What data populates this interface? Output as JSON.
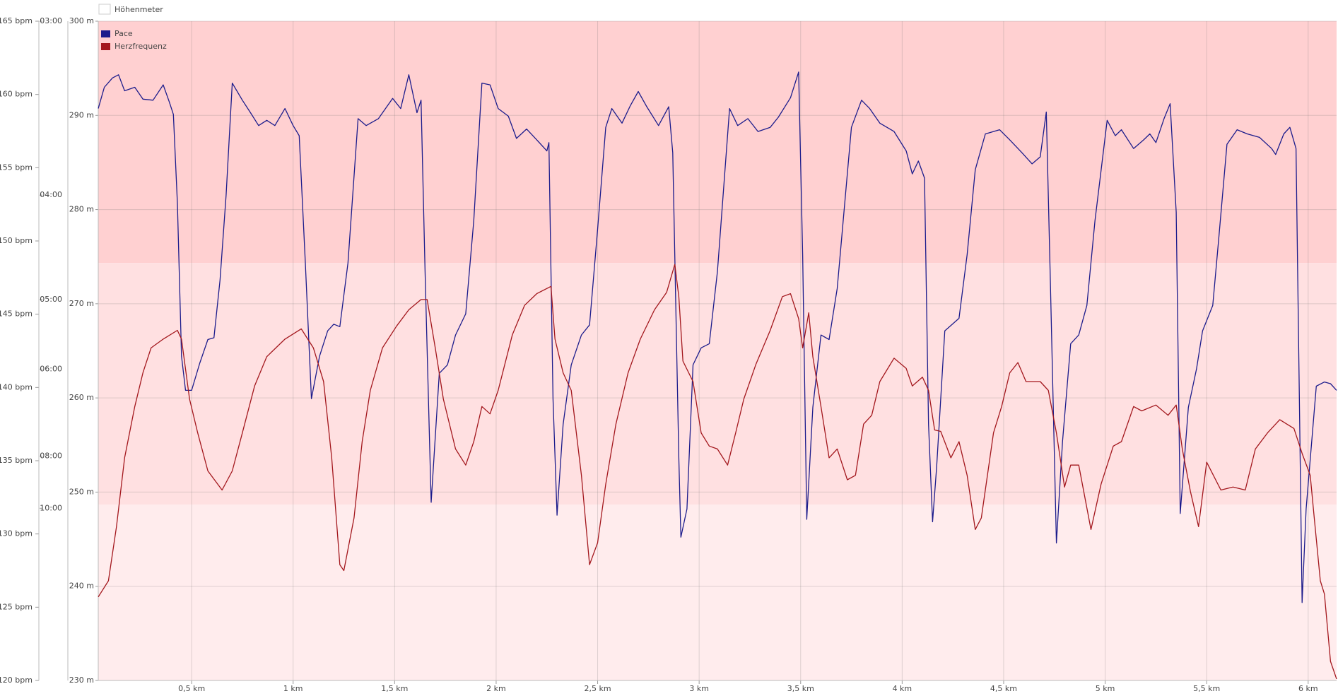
{
  "chart_data": {
    "type": "line",
    "inactive_legend": "Höhenmeter",
    "xlim": [
      0.04,
      6.14
    ],
    "xticks": [
      {
        "value": 0.5,
        "label": "0,5 km"
      },
      {
        "value": 1,
        "label": "1 km"
      },
      {
        "value": 1.5,
        "label": "1,5 km"
      },
      {
        "value": 2,
        "label": "2 km"
      },
      {
        "value": 2.5,
        "label": "2,5 km"
      },
      {
        "value": 3,
        "label": "3 km"
      },
      {
        "value": 3.5,
        "label": "3,5 km"
      },
      {
        "value": 4,
        "label": "4 km"
      },
      {
        "value": 4.5,
        "label": "4,5 km"
      },
      {
        "value": 5,
        "label": "5 km"
      },
      {
        "value": 5.5,
        "label": "5,5 km"
      },
      {
        "value": 6,
        "label": "6 km"
      }
    ],
    "ylim": [
      120,
      165
    ],
    "yticks": [
      {
        "value": 120,
        "label": "120 bpm"
      },
      {
        "value": 125,
        "label": "125 bpm"
      },
      {
        "value": 130,
        "label": "130 bpm"
      },
      {
        "value": 135,
        "label": "135 bpm"
      },
      {
        "value": 140,
        "label": "140 bpm"
      },
      {
        "value": 145,
        "label": "145 bpm"
      },
      {
        "value": 150,
        "label": "150 bpm"
      },
      {
        "value": 155,
        "label": "155 bpm"
      },
      {
        "value": 160,
        "label": "160 bpm"
      },
      {
        "value": 165,
        "label": "165 bpm"
      }
    ],
    "y2lim": [
      1.05,
      20
    ],
    "y2ticks": [
      {
        "value": 20,
        "label": "03:00"
      },
      {
        "value": 15,
        "label": "04:00"
      },
      {
        "value": 12,
        "label": "05:00"
      },
      {
        "value": 10,
        "label": "06:00"
      },
      {
        "value": 7.5,
        "label": "08:00"
      },
      {
        "value": 6,
        "label": "10:00"
      }
    ],
    "y3lim": [
      230,
      300
    ],
    "y3ticks": [
      {
        "value": 230,
        "label": "230 m"
      },
      {
        "value": 240,
        "label": "240 m"
      },
      {
        "value": 250,
        "label": "250 m"
      },
      {
        "value": 260,
        "label": "260 m"
      },
      {
        "value": 270,
        "label": "270 m"
      },
      {
        "value": 280,
        "label": "280 m"
      },
      {
        "value": 290,
        "label": "290 m"
      },
      {
        "value": 300,
        "label": "300 m"
      }
    ],
    "grid": true,
    "zones": [
      {
        "from": 148.5,
        "to": 165,
        "color": "#ffd0d1"
      },
      {
        "from": 132,
        "to": 148.5,
        "color": "#ffe0e1"
      },
      {
        "from": 120,
        "to": 132,
        "color": "#ffeced"
      }
    ],
    "series": [
      {
        "name": "Pace",
        "color": "#1c1c8c",
        "axis": "y2",
        "x": [
          0.04,
          0.07,
          0.11,
          0.14,
          0.17,
          0.22,
          0.26,
          0.31,
          0.36,
          0.39,
          0.41,
          0.43,
          0.45,
          0.47,
          0.5,
          0.54,
          0.58,
          0.61,
          0.64,
          0.67,
          0.7,
          0.75,
          0.79,
          0.83,
          0.87,
          0.91,
          0.96,
          1.0,
          1.03,
          1.06,
          1.09,
          1.13,
          1.17,
          1.2,
          1.23,
          1.27,
          1.32,
          1.36,
          1.42,
          1.49,
          1.53,
          1.57,
          1.61,
          1.63,
          1.65,
          1.68,
          1.72,
          1.76,
          1.8,
          1.85,
          1.89,
          1.93,
          1.97,
          2.01,
          2.06,
          2.1,
          2.15,
          2.2,
          2.25,
          2.26,
          2.28,
          2.3,
          2.33,
          2.37,
          2.42,
          2.46,
          2.5,
          2.54,
          2.57,
          2.62,
          2.66,
          2.7,
          2.74,
          2.8,
          2.85,
          2.87,
          2.9,
          2.91,
          2.94,
          2.97,
          3.01,
          3.05,
          3.09,
          3.15,
          3.19,
          3.24,
          3.29,
          3.35,
          3.39,
          3.45,
          3.49,
          3.51,
          3.53,
          3.56,
          3.6,
          3.64,
          3.68,
          3.75,
          3.8,
          3.84,
          3.89,
          3.96,
          4.02,
          4.05,
          4.08,
          4.11,
          4.13,
          4.15,
          4.17,
          4.21,
          4.28,
          4.32,
          4.36,
          4.41,
          4.48,
          4.53,
          4.59,
          4.64,
          4.68,
          4.71,
          4.73,
          4.76,
          4.79,
          4.83,
          4.87,
          4.91,
          4.95,
          5.01,
          5.05,
          5.08,
          5.14,
          5.19,
          5.22,
          5.25,
          5.29,
          5.32,
          5.35,
          5.37,
          5.41,
          5.45,
          5.48,
          5.53,
          5.56,
          5.6,
          5.65,
          5.7,
          5.76,
          5.82,
          5.84,
          5.88,
          5.91,
          5.94,
          5.97,
          5.99,
          6.04,
          6.08,
          6.11,
          6.14
        ],
        "values": [
          17.49,
          18.1,
          18.37,
          18.46,
          18.0,
          18.1,
          17.76,
          17.73,
          18.17,
          17.68,
          17.32,
          14.76,
          10.37,
          9.39,
          9.39,
          10.17,
          10.85,
          10.9,
          12.56,
          15.0,
          18.22,
          17.73,
          17.37,
          17.0,
          17.15,
          17.0,
          17.49,
          17.0,
          16.71,
          13.05,
          9.15,
          10.37,
          11.1,
          11.29,
          11.22,
          13.05,
          17.2,
          17.0,
          17.2,
          17.78,
          17.49,
          18.46,
          17.37,
          17.73,
          12.8,
          6.17,
          9.88,
          10.12,
          10.98,
          11.59,
          14.27,
          18.22,
          18.17,
          17.49,
          17.27,
          16.63,
          16.9,
          16.59,
          16.27,
          16.51,
          9.15,
          5.8,
          8.41,
          10.12,
          10.98,
          11.27,
          14.02,
          16.95,
          17.49,
          17.07,
          17.56,
          17.98,
          17.56,
          17.0,
          17.54,
          16.22,
          7.44,
          5.17,
          5.98,
          10.12,
          10.61,
          10.73,
          12.8,
          17.49,
          17.0,
          17.2,
          16.83,
          16.95,
          17.24,
          17.8,
          18.54,
          13.29,
          5.68,
          8.9,
          10.98,
          10.85,
          12.32,
          16.95,
          17.73,
          17.49,
          17.07,
          16.83,
          16.27,
          15.61,
          15.98,
          15.49,
          8.41,
          5.61,
          7.2,
          11.1,
          11.46,
          13.29,
          15.73,
          16.76,
          16.88,
          16.59,
          16.22,
          15.9,
          16.1,
          17.39,
          12.56,
          5.0,
          7.93,
          10.73,
          10.98,
          11.83,
          14.27,
          17.15,
          16.71,
          16.88,
          16.34,
          16.59,
          16.76,
          16.51,
          17.2,
          17.63,
          14.51,
          5.85,
          8.9,
          10.0,
          11.1,
          11.83,
          13.78,
          16.46,
          16.88,
          16.76,
          16.66,
          16.34,
          16.17,
          16.76,
          16.95,
          16.34,
          3.29,
          5.98,
          9.51,
          9.63,
          9.58,
          9.39
        ]
      },
      {
        "name": "Herzfrequenz",
        "color": "#a3171d",
        "axis": "y",
        "x": [
          0.04,
          0.09,
          0.13,
          0.17,
          0.22,
          0.26,
          0.3,
          0.36,
          0.43,
          0.45,
          0.49,
          0.53,
          0.58,
          0.65,
          0.7,
          0.75,
          0.81,
          0.87,
          0.96,
          1.04,
          1.1,
          1.15,
          1.19,
          1.23,
          1.25,
          1.3,
          1.34,
          1.38,
          1.44,
          1.51,
          1.57,
          1.63,
          1.66,
          1.7,
          1.74,
          1.8,
          1.85,
          1.89,
          1.93,
          1.97,
          2.01,
          2.08,
          2.14,
          2.2,
          2.27,
          2.29,
          2.33,
          2.37,
          2.42,
          2.46,
          2.5,
          2.54,
          2.59,
          2.65,
          2.71,
          2.78,
          2.84,
          2.88,
          2.9,
          2.92,
          2.97,
          3.01,
          3.05,
          3.09,
          3.14,
          3.18,
          3.22,
          3.28,
          3.35,
          3.41,
          3.45,
          3.49,
          3.51,
          3.54,
          3.56,
          3.6,
          3.64,
          3.68,
          3.73,
          3.77,
          3.81,
          3.85,
          3.89,
          3.96,
          4.02,
          4.05,
          4.1,
          4.13,
          4.16,
          4.19,
          4.24,
          4.28,
          4.32,
          4.36,
          4.39,
          4.45,
          4.49,
          4.53,
          4.57,
          4.61,
          4.68,
          4.72,
          4.76,
          4.8,
          4.83,
          4.87,
          4.93,
          4.98,
          5.04,
          5.08,
          5.14,
          5.18,
          5.25,
          5.31,
          5.35,
          5.38,
          5.42,
          5.46,
          5.5,
          5.57,
          5.63,
          5.69,
          5.74,
          5.8,
          5.86,
          5.93,
          5.97,
          6.01,
          6.03,
          6.06,
          6.08,
          6.11,
          6.14
        ],
        "values": [
          125.7,
          126.8,
          130.5,
          135.2,
          138.7,
          141.0,
          142.7,
          143.3,
          143.9,
          143.3,
          139.2,
          136.9,
          134.3,
          133.0,
          134.3,
          136.9,
          140.1,
          142.1,
          143.3,
          144.0,
          142.7,
          140.4,
          135.2,
          127.9,
          127.5,
          131.1,
          136.3,
          139.8,
          142.7,
          144.2,
          145.3,
          146.0,
          146.0,
          142.7,
          139.2,
          135.8,
          134.7,
          136.3,
          138.7,
          138.2,
          139.8,
          143.6,
          145.6,
          146.4,
          146.9,
          143.3,
          141.0,
          139.8,
          134.0,
          127.9,
          129.4,
          133.4,
          137.5,
          141.0,
          143.3,
          145.3,
          146.5,
          148.4,
          146.2,
          141.8,
          140.4,
          136.9,
          136.0,
          135.8,
          134.7,
          136.9,
          139.2,
          141.6,
          143.9,
          146.2,
          146.4,
          144.7,
          142.7,
          145.1,
          142.1,
          138.7,
          135.2,
          135.8,
          133.7,
          134.0,
          137.5,
          138.1,
          140.4,
          142.0,
          141.3,
          140.1,
          140.7,
          139.8,
          137.1,
          137.0,
          135.2,
          136.3,
          134.0,
          130.3,
          131.1,
          136.9,
          138.7,
          141.0,
          141.7,
          140.4,
          140.4,
          139.8,
          136.9,
          133.2,
          134.7,
          134.7,
          130.3,
          133.4,
          136.0,
          136.3,
          138.7,
          138.4,
          138.8,
          138.1,
          138.8,
          135.8,
          132.9,
          130.5,
          134.9,
          133.0,
          133.2,
          133.0,
          135.8,
          136.9,
          137.8,
          137.2,
          135.5,
          134.0,
          131.1,
          126.8,
          125.9,
          121.3,
          120.1
        ]
      }
    ]
  }
}
